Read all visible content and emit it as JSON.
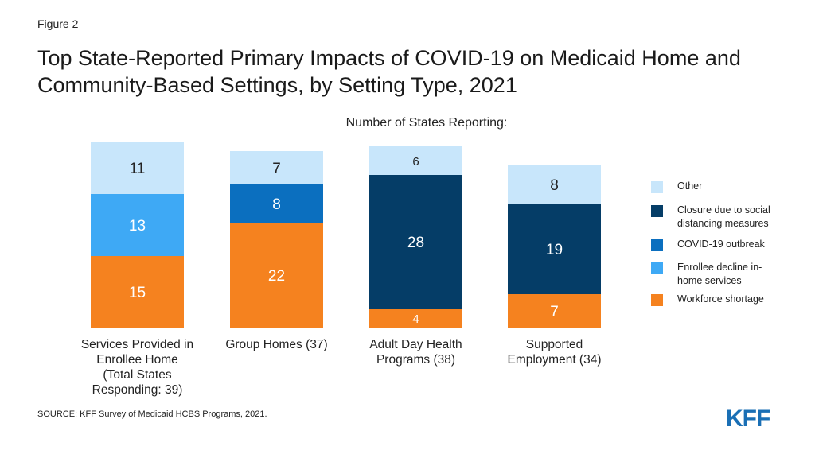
{
  "figure_label": "Figure 2",
  "title": "Top State-Reported Primary Impacts of COVID-19 on Medicaid Home and Community-Based Settings, by Setting Type, 2021",
  "source": "SOURCE: KFF Survey of Medicaid HCBS Programs, 2021.",
  "logo_text": "KFF",
  "chart_data": {
    "type": "bar",
    "stacked": true,
    "title": "Top State-Reported Primary Impacts of COVID-19 on Medicaid Home and Community-Based Settings, by Setting Type, 2021",
    "subtitle": "Number of States Reporting:",
    "categories": [
      "Services Provided in Enrollee Home (Total States Responding: 39)",
      "Group Homes (37)",
      "Adult Day Health Programs (38)",
      "Supported Employment (34)"
    ],
    "category_label_lines": [
      [
        "Services Provided in",
        "Enrollee Home",
        "(Total States",
        "Responding: 39)"
      ],
      [
        "Group Homes (37)"
      ],
      [
        "Adult Day Health",
        "Programs (38)"
      ],
      [
        "Supported",
        "Employment (34)"
      ]
    ],
    "series": [
      {
        "name": "Workforce shortage",
        "color": "#f5821f",
        "values": [
          15,
          22,
          4,
          7
        ]
      },
      {
        "name": "Enrollee decline in-home services",
        "color": "#3ea9f5",
        "values": [
          13,
          null,
          null,
          null
        ]
      },
      {
        "name": "COVID-19 outbreak",
        "color": "#0b6fbf",
        "values": [
          null,
          8,
          null,
          null
        ]
      },
      {
        "name": "Closure due to social distancing measures",
        "color": "#053d67",
        "values": [
          null,
          null,
          28,
          19
        ]
      },
      {
        "name": "Other",
        "color": "#c8e6fb",
        "values": [
          11,
          7,
          6,
          8
        ]
      }
    ],
    "legend_order": [
      "Other",
      "Closure due to social distancing measures",
      "COVID-19 outbreak",
      "Enrollee decline in-home services",
      "Workforce shortage"
    ],
    "legend_lines": {
      "Other": [
        "Other"
      ],
      "Closure due to social distancing measures": [
        "Closure due to social",
        "distancing measures"
      ],
      "COVID-19 outbreak": [
        "COVID-19 outbreak"
      ],
      "Enrollee decline in-home services": [
        "Enrollee decline in-",
        "home services"
      ],
      "Workforce shortage": [
        "Workforce shortage"
      ]
    },
    "legend_position": "right",
    "grid": false,
    "ylim": [
      0,
      39
    ]
  }
}
